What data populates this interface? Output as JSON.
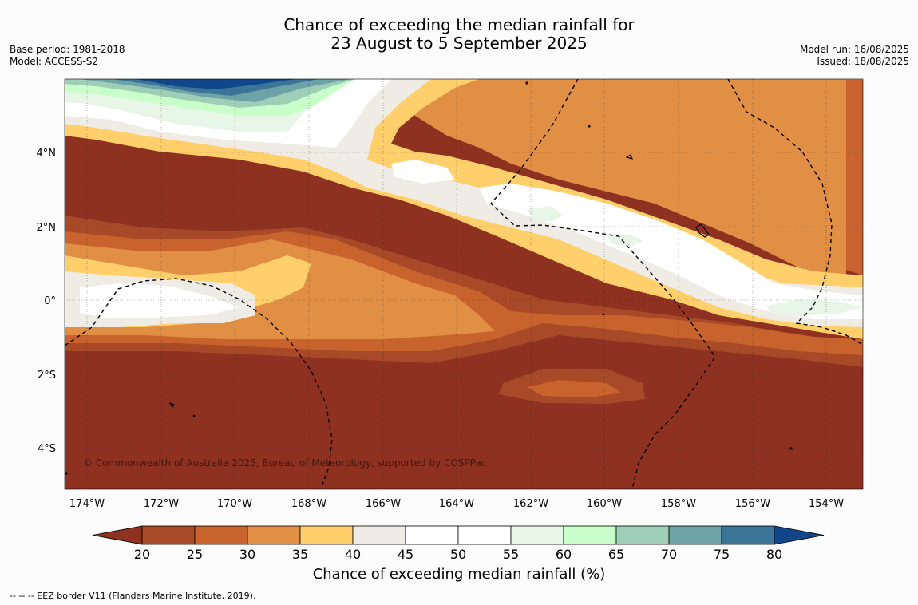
{
  "title": {
    "line1": "Chance of exceeding the median rainfall for",
    "line2": "23 August to 5 September 2025"
  },
  "meta_left": {
    "base_period": "Base period: 1981-2018",
    "model": "Model: ACCESS-S2"
  },
  "meta_right": {
    "model_run": "Model run: 16/08/2025",
    "issued": "Issued: 18/08/2025"
  },
  "map": {
    "lon_labels": [
      "174°W",
      "172°W",
      "170°W",
      "168°W",
      "166°W",
      "164°W",
      "162°W",
      "160°W",
      "158°W",
      "156°W",
      "154°W"
    ],
    "lat_labels": [
      "4°N",
      "2°N",
      "0°",
      "2°S",
      "4°S"
    ],
    "copyright": "© Commonwealth of Australia 2025, Bureau of Meteorology, supported by COSPPac"
  },
  "colorbar": {
    "ticks": [
      "20",
      "25",
      "30",
      "35",
      "40",
      "45",
      "50",
      "55",
      "60",
      "65",
      "70",
      "75",
      "80"
    ],
    "colors": {
      "below20": "#8e3121",
      "20-25": "#a84a28",
      "25-30": "#c8632e",
      "30-35": "#e08f45",
      "35-40": "#fecf6b",
      "40-45": "#efebe5",
      "45-50": "#ffffff",
      "50-55": "#ffffff",
      "55-60": "#e8f6e8",
      "60-65": "#c9fdc9",
      "65-70": "#9ecfb6",
      "70-75": "#6da3a7",
      "75-80": "#3c7498",
      "above80": "#11478a"
    },
    "label": "Chance of exceeding median rainfall (%)"
  },
  "footer": "--  --  -- EEZ border V11 (Flanders Marine Institute, 2019)."
}
